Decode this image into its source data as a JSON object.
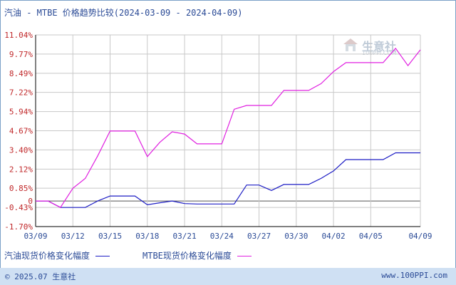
{
  "title": "汽油 - MTBE 价格趋势比较(2024-03-09 - 2024-04-09)",
  "watermark": {
    "name": "生意社",
    "url": "100PPI.COM"
  },
  "footer": {
    "left": "© 2025.07 生意社",
    "right": "www.100PPI.com"
  },
  "colors": {
    "gasoline": "#1c1cc4",
    "mtbe": "#e020e0",
    "grid": "#c8c8c8",
    "axis": "#000000",
    "zero": "#555555"
  },
  "chart_data": {
    "type": "line",
    "title": "汽油 - MTBE 价格趋势比较(2024-03-09 - 2024-04-09)",
    "xlabel": "",
    "ylabel": "",
    "x_ticks": [
      "03/09",
      "03/12",
      "03/15",
      "03/18",
      "03/21",
      "03/24",
      "03/27",
      "03/30",
      "04/02",
      "04/05",
      "04/09"
    ],
    "y_ticks": [
      "11.04%",
      "9.77%",
      "8.49%",
      "7.22%",
      "5.94%",
      "4.67%",
      "3.40%",
      "2.12%",
      "0.85%",
      "0",
      "-0.43%",
      "-1.70%"
    ],
    "ylim": [
      -1.7,
      11.04
    ],
    "x_days": [
      "03/09",
      "03/10",
      "03/11",
      "03/12",
      "03/13",
      "03/14",
      "03/15",
      "03/16",
      "03/17",
      "03/18",
      "03/19",
      "03/20",
      "03/21",
      "03/22",
      "03/23",
      "03/24",
      "03/25",
      "03/26",
      "03/27",
      "03/28",
      "03/29",
      "03/30",
      "03/31",
      "04/01",
      "04/02",
      "04/03",
      "04/04",
      "04/05",
      "04/06",
      "04/07",
      "04/08",
      "04/09"
    ],
    "grid": true,
    "legend_position": "bottom-left",
    "series": [
      {
        "name": "汽油现货价格变化幅度",
        "color": "#1c1cc4",
        "values": [
          0,
          0,
          -0.43,
          -0.43,
          -0.43,
          0,
          0.33,
          0.33,
          0.33,
          -0.25,
          -0.12,
          0,
          -0.17,
          -0.2,
          -0.2,
          -0.2,
          -0.2,
          1.06,
          1.06,
          0.7,
          1.1,
          1.1,
          1.1,
          1.5,
          2.0,
          2.75,
          2.75,
          2.75,
          2.75,
          3.2,
          3.2,
          3.2
        ]
      },
      {
        "name": "MTBE现货价格变化幅度",
        "color": "#e020e0",
        "values": [
          0,
          0,
          -0.43,
          0.85,
          1.5,
          3.0,
          4.65,
          4.65,
          4.65,
          2.95,
          3.9,
          4.6,
          4.45,
          3.8,
          3.8,
          3.8,
          6.1,
          6.35,
          6.35,
          6.35,
          7.35,
          7.35,
          7.35,
          7.8,
          8.6,
          9.2,
          9.2,
          9.2,
          9.2,
          10.15,
          9.0,
          10.05
        ]
      }
    ]
  }
}
